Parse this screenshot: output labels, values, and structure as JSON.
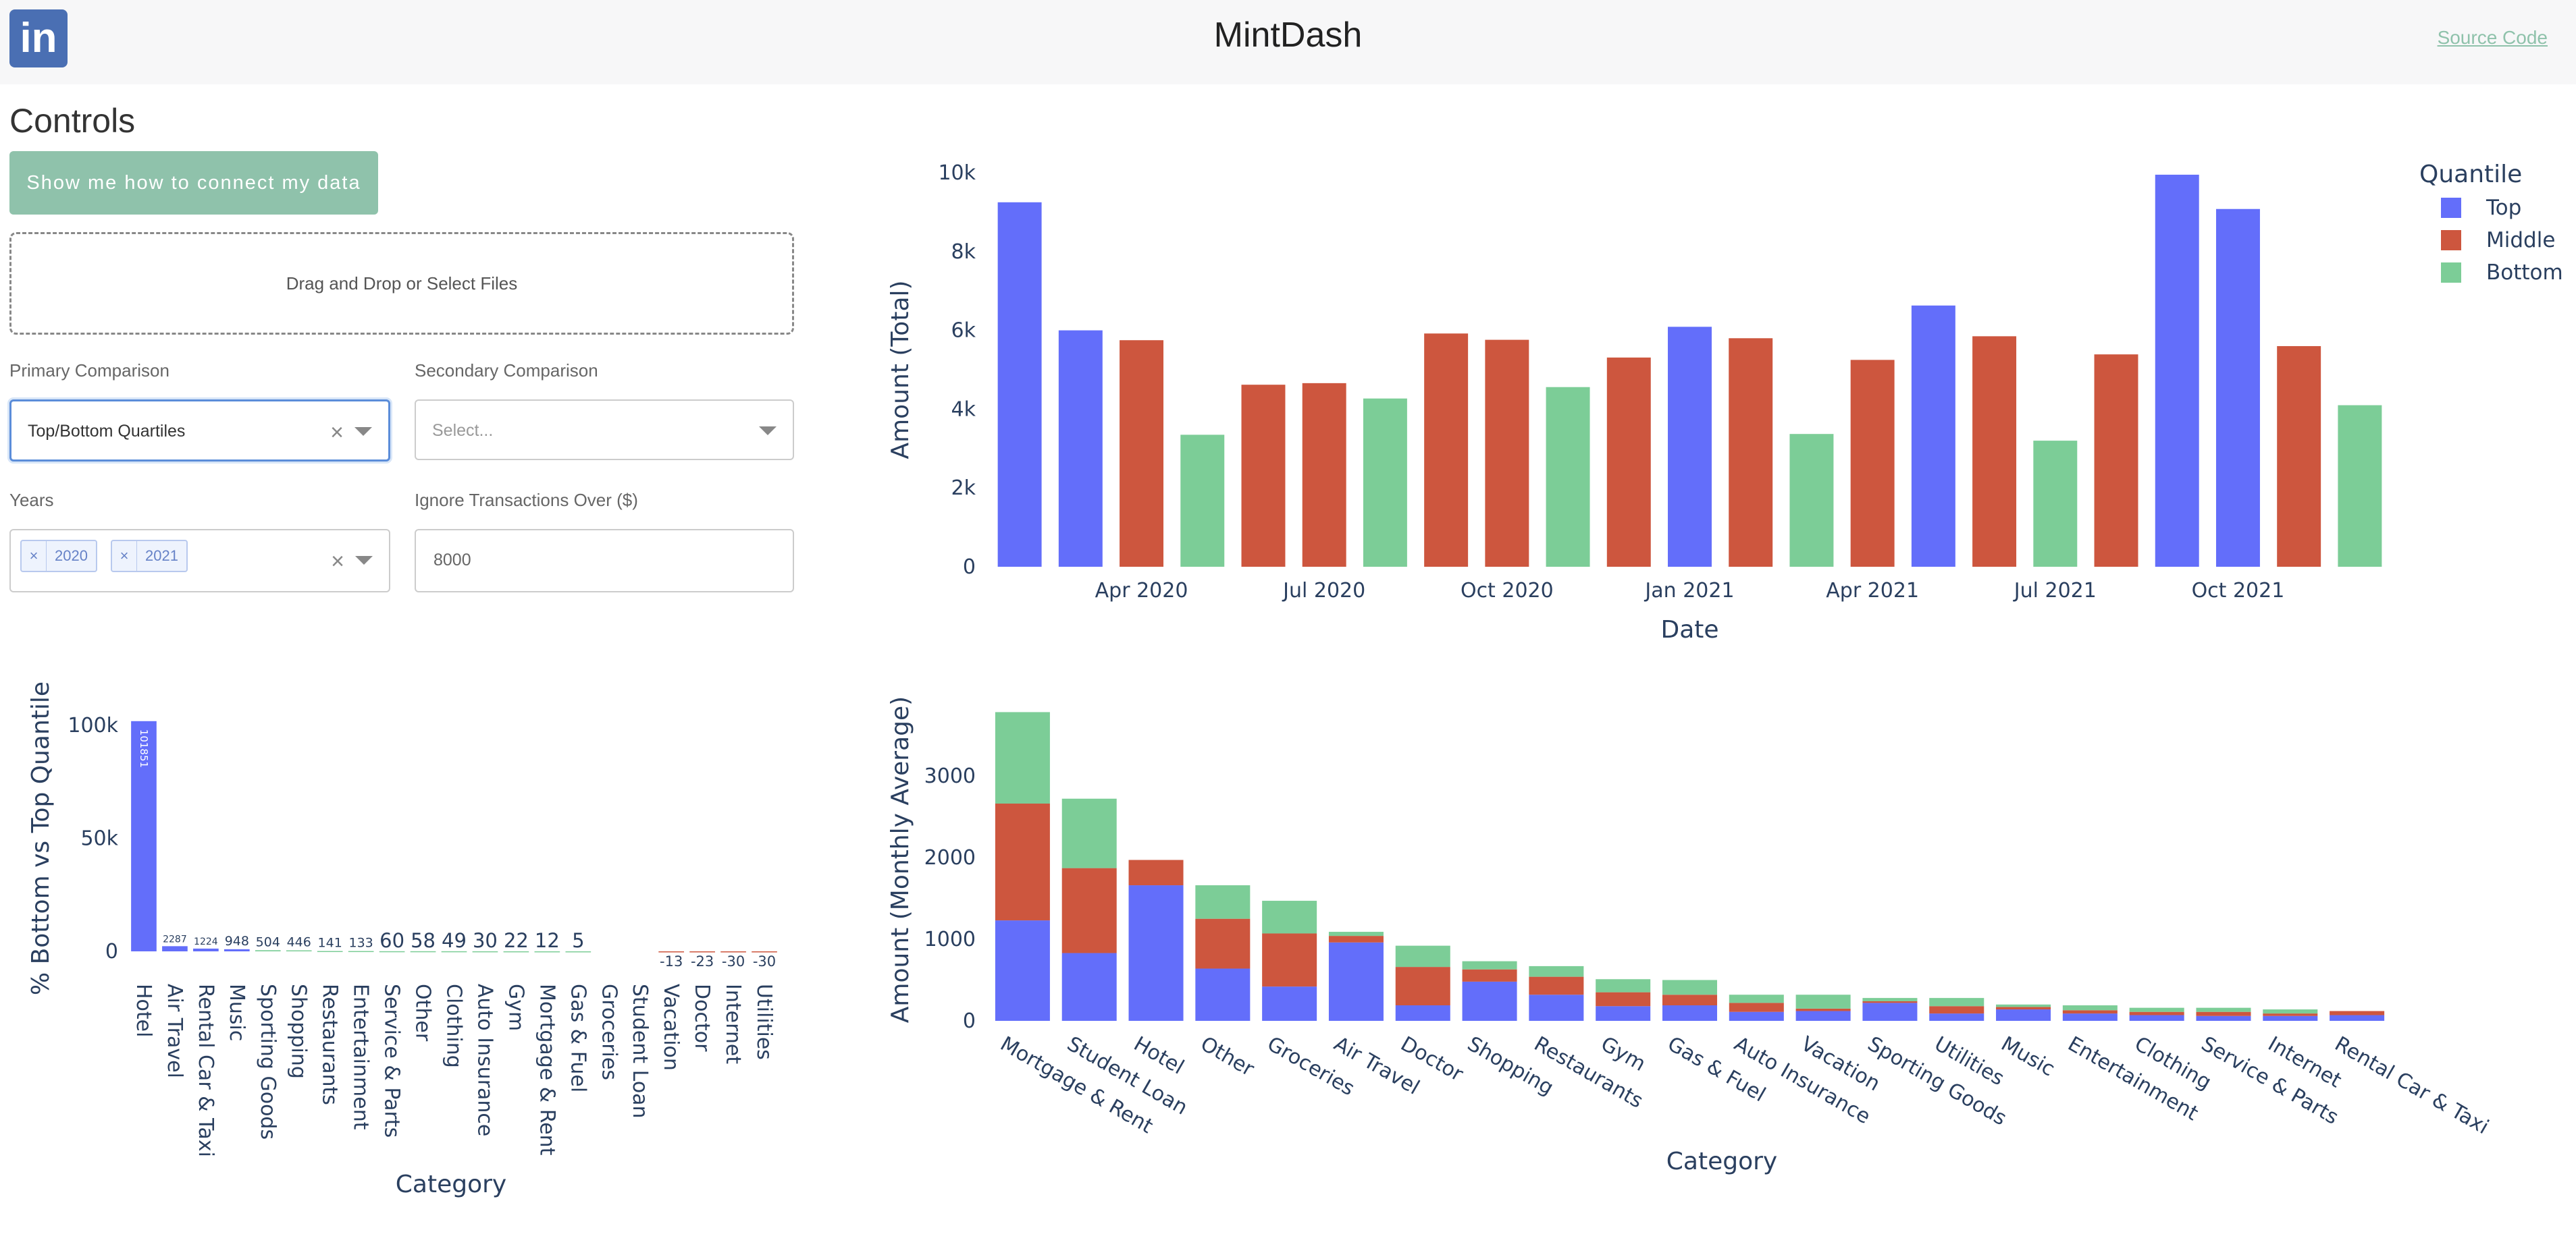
{
  "header": {
    "title": "MintDash",
    "source_link": "Source Code",
    "logo_text": "in"
  },
  "controls": {
    "title": "Controls",
    "connect_button": "Show me how to connect my data",
    "dropzone": "Drag and Drop or Select Files",
    "primary": {
      "label": "Primary Comparison",
      "value": "Top/Bottom Quartiles"
    },
    "secondary": {
      "label": "Secondary Comparison",
      "placeholder": "Select..."
    },
    "years": {
      "label": "Years",
      "tags": [
        "2020",
        "2021"
      ]
    },
    "ignore": {
      "label": "Ignore Transactions Over ($)",
      "value": "8000"
    }
  },
  "colors": {
    "top": "#636efa",
    "middle": "#cd563e",
    "bottom": "#7ccd97",
    "accent": "#8fc2ab"
  },
  "chart_data": [
    {
      "type": "bar",
      "xlabel": "Date",
      "ylabel": "Amount (Total)",
      "ylim": [
        0,
        10000
      ],
      "ytick_labels": [
        "0",
        "2k",
        "4k",
        "6k",
        "8k",
        "10k"
      ],
      "xtick_labels": [
        "Apr 2020",
        "Jul 2020",
        "Oct 2020",
        "Jan 2021",
        "Apr 2021",
        "Jul 2021",
        "Oct 2021"
      ],
      "legend": {
        "title": "Quantile",
        "items": [
          "Top",
          "Middle",
          "Bottom"
        ],
        "placement": "top-right"
      },
      "bars": [
        {
          "quantile": "Top",
          "value": 9250
        },
        {
          "quantile": "Top",
          "value": 6000
        },
        {
          "quantile": "Middle",
          "value": 5750
        },
        {
          "quantile": "Bottom",
          "value": 3350
        },
        {
          "quantile": "Middle",
          "value": 4620
        },
        {
          "quantile": "Middle",
          "value": 4660
        },
        {
          "quantile": "Bottom",
          "value": 4270
        },
        {
          "quantile": "Middle",
          "value": 5920
        },
        {
          "quantile": "Middle",
          "value": 5760
        },
        {
          "quantile": "Bottom",
          "value": 4560
        },
        {
          "quantile": "Middle",
          "value": 5310
        },
        {
          "quantile": "Top",
          "value": 6090
        },
        {
          "quantile": "Middle",
          "value": 5800
        },
        {
          "quantile": "Bottom",
          "value": 3370
        },
        {
          "quantile": "Middle",
          "value": 5250
        },
        {
          "quantile": "Top",
          "value": 6630
        },
        {
          "quantile": "Middle",
          "value": 5850
        },
        {
          "quantile": "Bottom",
          "value": 3200
        },
        {
          "quantile": "Middle",
          "value": 5390
        },
        {
          "quantile": "Top",
          "value": 9950
        },
        {
          "quantile": "Top",
          "value": 9080
        },
        {
          "quantile": "Middle",
          "value": 5600
        },
        {
          "quantile": "Bottom",
          "value": 4100
        }
      ]
    },
    {
      "type": "bar",
      "xlabel": "Category",
      "ylabel": "% Bottom vs Top Quantile",
      "ylim": [
        0,
        100000
      ],
      "ytick_labels": [
        "0",
        "50k",
        "100k"
      ],
      "categories": [
        "Hotel",
        "Air Travel",
        "Rental Car & Taxi",
        "Music",
        "Sporting Goods",
        "Shopping",
        "Restaurants",
        "Entertainment",
        "Service & Parts",
        "Other",
        "Clothing",
        "Auto Insurance",
        "Gym",
        "Mortgage & Rent",
        "Gas & Fuel",
        "Groceries",
        "Student Loan",
        "Vacation",
        "Doctor",
        "Internet",
        "Utilities"
      ],
      "values": [
        101851,
        2287,
        1224,
        948,
        504,
        446,
        141,
        133,
        60,
        58,
        49,
        30,
        22,
        12,
        5,
        null,
        null,
        -13,
        -23,
        -30,
        -30
      ],
      "data_labels": [
        "101851",
        "2287",
        "1224",
        "948",
        "504",
        "446",
        "141",
        "133",
        "60",
        "58",
        "49",
        "30",
        "22",
        "12",
        "5",
        "",
        "",
        "-13",
        "-23",
        "-30",
        "-30"
      ],
      "colors": [
        "#636efa",
        "#636efa",
        "#636efa",
        "#636efa",
        "#7ccd97",
        "#7ccd97",
        "#7ccd97",
        "#7ccd97",
        "#7ccd97",
        "#7ccd97",
        "#7ccd97",
        "#7ccd97",
        "#7ccd97",
        "#7ccd97",
        "#7ccd97",
        "#7ccd97",
        "#7ccd97",
        "#cd563e",
        "#cd563e",
        "#cd563e",
        "#cd563e"
      ]
    },
    {
      "type": "bar",
      "stacked": true,
      "xlabel": "Category",
      "ylabel": "Amount (Monthly Average)",
      "ylim": [
        0,
        3800
      ],
      "ytick_labels": [
        "0",
        "1000",
        "2000",
        "3000"
      ],
      "categories": [
        "Mortgage & Rent",
        "Student Loan",
        "Hotel",
        "Other",
        "Groceries",
        "Air Travel",
        "Doctor",
        "Shopping",
        "Restaurants",
        "Gym",
        "Gas & Fuel",
        "Auto Insurance",
        "Vacation",
        "Sporting Goods",
        "Utilities",
        "Music",
        "Entertainment",
        "Clothing",
        "Service & Parts",
        "Internet",
        "Rental Car & Taxi"
      ],
      "series": [
        {
          "name": "Top",
          "values": [
            1230,
            830,
            1660,
            640,
            420,
            960,
            190,
            480,
            320,
            180,
            190,
            110,
            120,
            220,
            90,
            140,
            90,
            70,
            60,
            60,
            70
          ]
        },
        {
          "name": "Middle",
          "values": [
            1430,
            1040,
            310,
            610,
            650,
            80,
            470,
            150,
            220,
            170,
            130,
            110,
            30,
            20,
            90,
            30,
            40,
            40,
            50,
            30,
            50
          ]
        },
        {
          "name": "Bottom",
          "values": [
            1120,
            850,
            0,
            410,
            400,
            50,
            260,
            100,
            130,
            160,
            180,
            100,
            170,
            40,
            100,
            30,
            60,
            50,
            50,
            50,
            0
          ]
        }
      ]
    }
  ]
}
